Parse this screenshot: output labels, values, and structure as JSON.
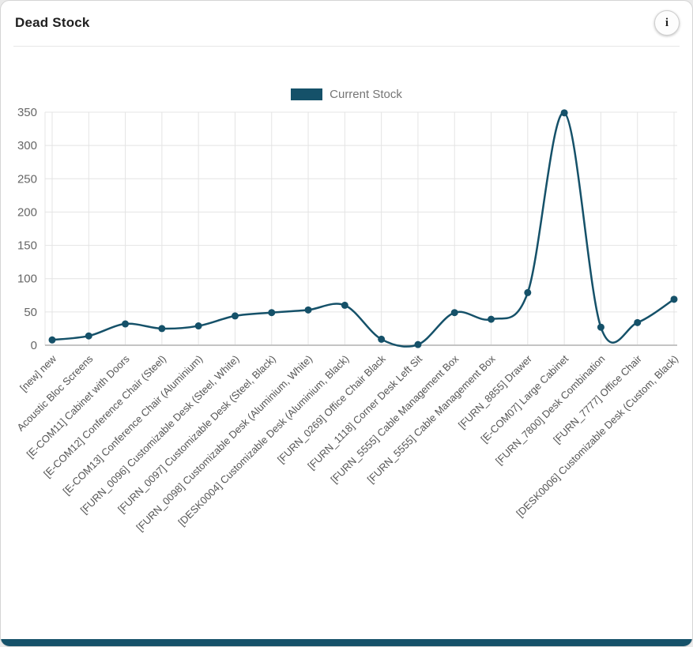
{
  "header": {
    "title": "Dead Stock",
    "info_icon": "i"
  },
  "legend": {
    "label": "Current Stock",
    "color": "#155169"
  },
  "colors": {
    "line": "#155169",
    "grid": "#e4e4e4",
    "axis": "#c4c4c4"
  },
  "chart_data": {
    "type": "line",
    "title": "Dead Stock",
    "xlabel": "",
    "ylabel": "",
    "ylim": [
      0,
      350
    ],
    "yticks": [
      0,
      50,
      100,
      150,
      200,
      250,
      300,
      350
    ],
    "grid": true,
    "smooth": true,
    "legend_position": "top",
    "line_color": "#155169",
    "categories": [
      "[new] new",
      "Acoustic Bloc Screens",
      "[E-COM11] Cabinet with Doors",
      "[E-COM12] Conference Chair (Steel)",
      "[E-COM13] Conference Chair (Aluminium)",
      "[FURN_0096] Customizable Desk (Steel, White)",
      "[FURN_0097] Customizable Desk (Steel, Black)",
      "[FURN_0098] Customizable Desk (Aluminium, White)",
      "[DESK0004] Customizable Desk (Aluminium, Black)",
      "[FURN_0269] Office Chair Black",
      "[FURN_1118] Corner Desk Left Sit",
      "[FURN_5555] Cable Management Box",
      "[FURN_5555] Cable Management Box",
      "[FURN_8855] Drawer",
      "[E-COM07] Large Cabinet",
      "[FURN_7800] Desk Combination",
      "[FURN_7777] Office Chair",
      "[DESK0006] Customizable Desk (Custom, Black)"
    ],
    "series": [
      {
        "name": "Current Stock",
        "values": [
          8,
          14,
          32,
          25,
          29,
          44,
          49,
          53,
          60,
          9,
          1,
          49,
          39,
          79,
          349,
          27,
          34,
          69
        ]
      }
    ]
  }
}
